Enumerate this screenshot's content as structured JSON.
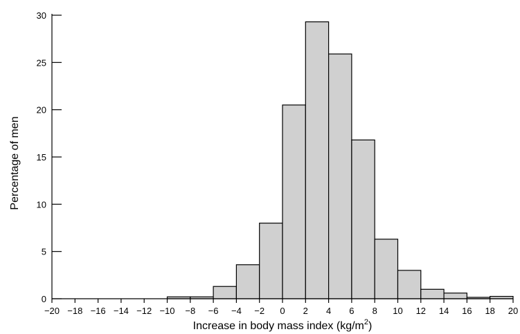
{
  "chart_data": {
    "type": "bar",
    "title": "",
    "xlabel": "Increase in body mass index (kg/m",
    "xlabel_superscript": "2",
    "xlabel_suffix": ")",
    "ylabel": "Percentage of men",
    "xlim": [
      -20,
      20
    ],
    "ylim": [
      0,
      30
    ],
    "xticks": [
      -20,
      -18,
      -16,
      -14,
      -12,
      -10,
      -8,
      -6,
      -4,
      -2,
      0,
      2,
      4,
      6,
      8,
      10,
      12,
      14,
      16,
      18,
      20
    ],
    "yticks": [
      0,
      5,
      10,
      15,
      20,
      25,
      30
    ],
    "bin_edges": [
      -10,
      -8,
      -6,
      -4,
      -2,
      0,
      2,
      4,
      6,
      8,
      10,
      12,
      14,
      16,
      18,
      20
    ],
    "values": [
      0.2,
      0.2,
      1.3,
      3.6,
      8.0,
      20.5,
      29.3,
      25.9,
      16.8,
      6.3,
      3.0,
      1.0,
      0.6,
      0.15,
      0.25
    ],
    "grid": false,
    "bar_color": "#d0d0d0",
    "edge_color": "#000000"
  }
}
